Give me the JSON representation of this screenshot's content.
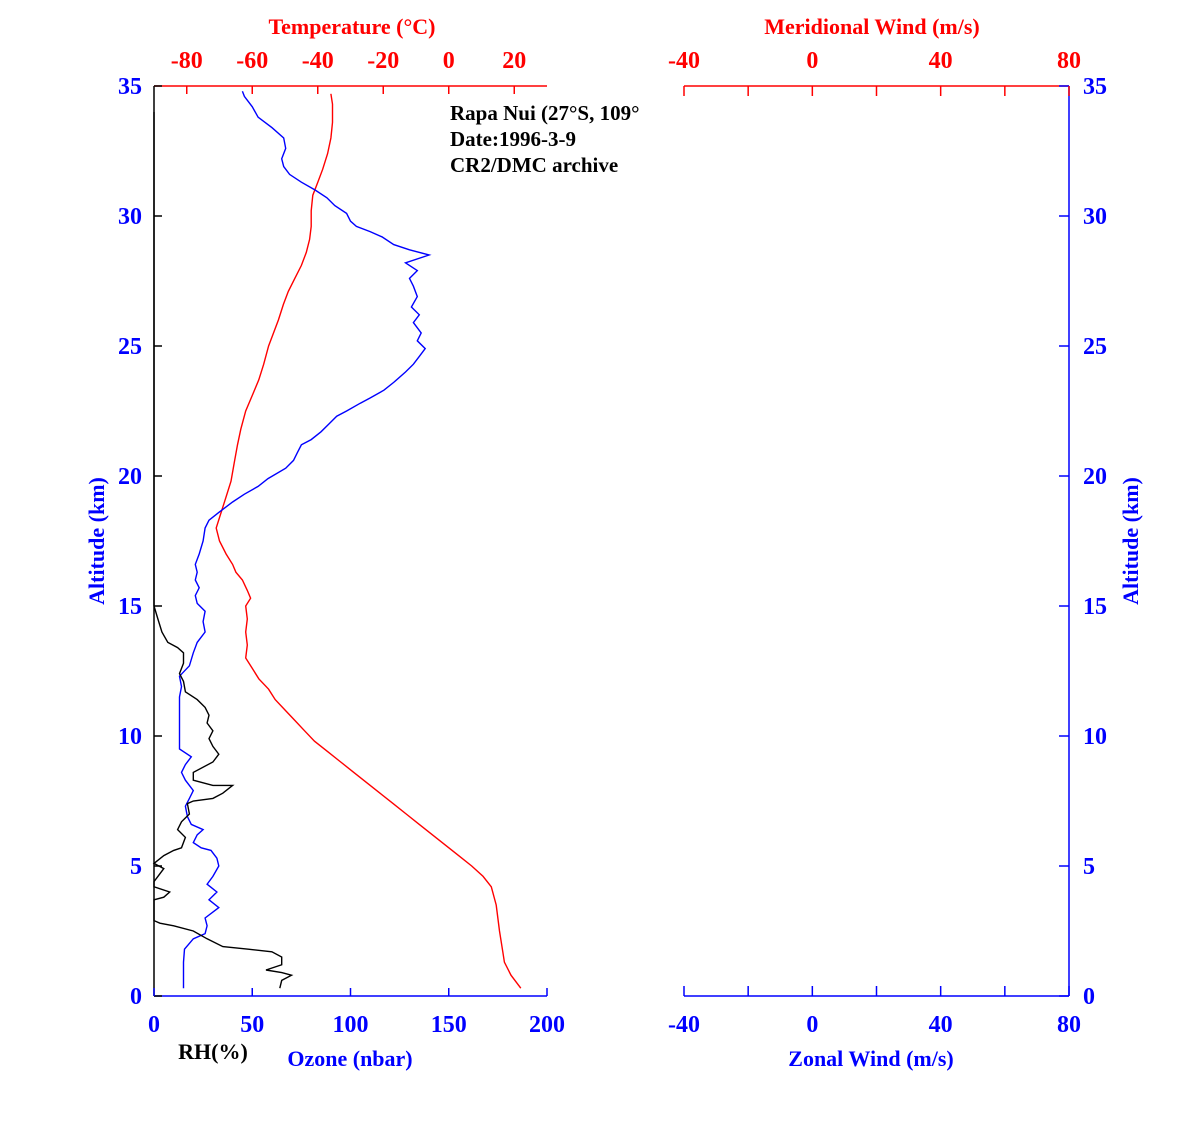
{
  "chart_data": [
    {
      "type": "line",
      "title": "",
      "annotation": [
        "Rapa Nui (27°S, 109°",
        "Date:1996-3-9",
        "CR2/DMC archive"
      ],
      "ylabel": "Altitude (km)",
      "ylim": [
        0,
        35
      ],
      "yticks": [
        0,
        5,
        10,
        15,
        20,
        25,
        30,
        35
      ],
      "bottom_axis": {
        "label": "Ozone (nbar)",
        "secondary_label": "RH(%)",
        "xlim": [
          0,
          200
        ],
        "ticks": [
          0,
          50,
          100,
          150,
          200
        ]
      },
      "top_axis": {
        "label": "Temperature (°C)",
        "xlim": [
          -90,
          30
        ],
        "ticks": [
          -80,
          -60,
          -40,
          -20,
          0,
          20
        ]
      },
      "colors": {
        "temperature": "#ff0000",
        "ozone": "#0000ff",
        "rh": "#000000",
        "axis": "#0000ff"
      },
      "series": [
        {
          "name": "Temperature",
          "axis": "top",
          "color": "#ff0000",
          "points": [
            [
              22,
              0.3
            ],
            [
              19,
              0.8
            ],
            [
              17,
              1.3
            ],
            [
              16.5,
              1.7
            ],
            [
              15.5,
              2.5
            ],
            [
              14.5,
              3.5
            ],
            [
              13,
              4.2
            ],
            [
              10.5,
              4.6
            ],
            [
              7,
              5.0
            ],
            [
              3,
              5.4
            ],
            [
              -1,
              5.8
            ],
            [
              -5,
              6.2
            ],
            [
              -9,
              6.6
            ],
            [
              -13,
              7.0
            ],
            [
              -17,
              7.4
            ],
            [
              -21,
              7.8
            ],
            [
              -25,
              8.2
            ],
            [
              -29,
              8.6
            ],
            [
              -33,
              9.0
            ],
            [
              -37,
              9.4
            ],
            [
              -41,
              9.8
            ],
            [
              -44,
              10.2
            ],
            [
              -47,
              10.6
            ],
            [
              -50,
              11.0
            ],
            [
              -53,
              11.4
            ],
            [
              -55,
              11.8
            ],
            [
              -58,
              12.2
            ],
            [
              -60,
              12.6
            ],
            [
              -62,
              13.0
            ],
            [
              -61.5,
              13.5
            ],
            [
              -62,
              14.0
            ],
            [
              -61.5,
              14.5
            ],
            [
              -62,
              15.0
            ],
            [
              -60.5,
              15.3
            ],
            [
              -61.5,
              15.6
            ],
            [
              -63,
              16.0
            ],
            [
              -65,
              16.3
            ],
            [
              -66,
              16.6
            ],
            [
              -68,
              17.0
            ],
            [
              -70,
              17.5
            ],
            [
              -71,
              18.0
            ],
            [
              -70,
              18.4
            ],
            [
              -69,
              18.8
            ],
            [
              -68,
              19.2
            ],
            [
              -66.5,
              19.8
            ],
            [
              -65.5,
              20.5
            ],
            [
              -64.5,
              21.2
            ],
            [
              -63.5,
              21.8
            ],
            [
              -62,
              22.5
            ],
            [
              -60,
              23.1
            ],
            [
              -58,
              23.7
            ],
            [
              -56.5,
              24.3
            ],
            [
              -55,
              25.0
            ],
            [
              -53.5,
              25.5
            ],
            [
              -52,
              26.0
            ],
            [
              -50.5,
              26.6
            ],
            [
              -49,
              27.1
            ],
            [
              -47,
              27.6
            ],
            [
              -45,
              28.1
            ],
            [
              -43.5,
              28.6
            ],
            [
              -42.5,
              29.1
            ],
            [
              -42,
              29.6
            ],
            [
              -42,
              30.2
            ],
            [
              -41.5,
              30.8
            ],
            [
              -40,
              31.3
            ],
            [
              -38.5,
              31.8
            ],
            [
              -37,
              32.4
            ],
            [
              -36,
              33.0
            ],
            [
              -35.5,
              33.6
            ],
            [
              -35.5,
              34.3
            ],
            [
              -36,
              34.7
            ]
          ]
        },
        {
          "name": "Ozone",
          "axis": "bottom",
          "color": "#0000ff",
          "points": [
            [
              15,
              0.3
            ],
            [
              15,
              0.8
            ],
            [
              15,
              1.3
            ],
            [
              15.5,
              1.8
            ],
            [
              20,
              2.2
            ],
            [
              26,
              2.4
            ],
            [
              27,
              2.7
            ],
            [
              26,
              3.0
            ],
            [
              33,
              3.4
            ],
            [
              28,
              3.7
            ],
            [
              32,
              4.0
            ],
            [
              27,
              4.3
            ],
            [
              30,
              4.6
            ],
            [
              33,
              5.0
            ],
            [
              32,
              5.3
            ],
            [
              29,
              5.6
            ],
            [
              24,
              5.7
            ],
            [
              20,
              5.9
            ],
            [
              22,
              6.2
            ],
            [
              25,
              6.4
            ],
            [
              19,
              6.6
            ],
            [
              17,
              6.9
            ],
            [
              16,
              7.3
            ],
            [
              18,
              7.6
            ],
            [
              20,
              7.9
            ],
            [
              16,
              8.3
            ],
            [
              14,
              8.6
            ],
            [
              16,
              8.9
            ],
            [
              19,
              9.2
            ],
            [
              13,
              9.5
            ],
            [
              13,
              9.9
            ],
            [
              13,
              10.3
            ],
            [
              13,
              10.7
            ],
            [
              13,
              11.1
            ],
            [
              13,
              11.5
            ],
            [
              14,
              11.9
            ],
            [
              13,
              12.3
            ],
            [
              18,
              12.7
            ],
            [
              20,
              13.2
            ],
            [
              22,
              13.6
            ],
            [
              26,
              14.0
            ],
            [
              25,
              14.4
            ],
            [
              26,
              14.8
            ],
            [
              22,
              15.1
            ],
            [
              21,
              15.4
            ],
            [
              23,
              15.7
            ],
            [
              21,
              16.0
            ],
            [
              22,
              16.3
            ],
            [
              21,
              16.6
            ],
            [
              23,
              17.0
            ],
            [
              25,
              17.5
            ],
            [
              26,
              18.0
            ],
            [
              28,
              18.3
            ],
            [
              33,
              18.6
            ],
            [
              40,
              19.0
            ],
            [
              46,
              19.3
            ],
            [
              53,
              19.6
            ],
            [
              58,
              19.9
            ],
            [
              67,
              20.3
            ],
            [
              71,
              20.6
            ],
            [
              73,
              20.9
            ],
            [
              75,
              21.2
            ],
            [
              80,
              21.4
            ],
            [
              85,
              21.7
            ],
            [
              89,
              22.0
            ],
            [
              93,
              22.3
            ],
            [
              98,
              22.5
            ],
            [
              105,
              22.8
            ],
            [
              110,
              23.0
            ],
            [
              117,
              23.3
            ],
            [
              122,
              23.6
            ],
            [
              128,
              24.0
            ],
            [
              132,
              24.3
            ],
            [
              135,
              24.6
            ],
            [
              138,
              24.9
            ],
            [
              134,
              25.2
            ],
            [
              136,
              25.5
            ],
            [
              132,
              25.9
            ],
            [
              135,
              26.2
            ],
            [
              131,
              26.5
            ],
            [
              134,
              26.9
            ],
            [
              132,
              27.3
            ],
            [
              130,
              27.6
            ],
            [
              134,
              27.9
            ],
            [
              128,
              28.2
            ],
            [
              140,
              28.5
            ],
            [
              130,
              28.7
            ],
            [
              122,
              28.9
            ],
            [
              116,
              29.2
            ],
            [
              110,
              29.4
            ],
            [
              103,
              29.6
            ],
            [
              100,
              29.8
            ],
            [
              98,
              30.1
            ],
            [
              92,
              30.4
            ],
            [
              88,
              30.7
            ],
            [
              82,
              31.0
            ],
            [
              75,
              31.3
            ],
            [
              69,
              31.6
            ],
            [
              66,
              31.9
            ],
            [
              65,
              32.2
            ],
            [
              67,
              32.6
            ],
            [
              66,
              33.0
            ],
            [
              60,
              33.4
            ],
            [
              53,
              33.8
            ],
            [
              50,
              34.2
            ],
            [
              46,
              34.6
            ],
            [
              45,
              34.8
            ]
          ]
        },
        {
          "name": "RH",
          "axis": "bottom",
          "color": "#000000",
          "points": [
            [
              64,
              0.3
            ],
            [
              65,
              0.6
            ],
            [
              70,
              0.8
            ],
            [
              65,
              0.9
            ],
            [
              57,
              1.0
            ],
            [
              65,
              1.2
            ],
            [
              65,
              1.5
            ],
            [
              60,
              1.7
            ],
            [
              48,
              1.8
            ],
            [
              35,
              1.9
            ],
            [
              27,
              2.2
            ],
            [
              20,
              2.5
            ],
            [
              10,
              2.7
            ],
            [
              3,
              2.8
            ],
            [
              0,
              2.9
            ],
            [
              0,
              3.3
            ],
            [
              0,
              3.7
            ],
            [
              5,
              3.8
            ],
            [
              8,
              4.0
            ],
            [
              0,
              4.2
            ],
            [
              0,
              4.4
            ],
            [
              2,
              4.6
            ],
            [
              5,
              4.9
            ],
            [
              0,
              5.1
            ],
            [
              5,
              5.4
            ],
            [
              10,
              5.6
            ],
            [
              14,
              5.7
            ],
            [
              16,
              6.1
            ],
            [
              12,
              6.4
            ],
            [
              14,
              6.7
            ],
            [
              18,
              7.0
            ],
            [
              17,
              7.4
            ],
            [
              20,
              7.5
            ],
            [
              30,
              7.6
            ],
            [
              35,
              7.8
            ],
            [
              40,
              8.1
            ],
            [
              30,
              8.1
            ],
            [
              20,
              8.3
            ],
            [
              20,
              8.6
            ],
            [
              30,
              9.0
            ],
            [
              33,
              9.3
            ],
            [
              30,
              9.6
            ],
            [
              28,
              9.9
            ],
            [
              30,
              10.2
            ],
            [
              27,
              10.5
            ],
            [
              28,
              10.8
            ],
            [
              26,
              11.1
            ],
            [
              22,
              11.4
            ],
            [
              16,
              11.7
            ],
            [
              15,
              12.1
            ],
            [
              13,
              12.4
            ],
            [
              15,
              12.8
            ],
            [
              15,
              13.2
            ],
            [
              12,
              13.4
            ],
            [
              7,
              13.6
            ],
            [
              4,
              14.0
            ],
            [
              2,
              14.5
            ],
            [
              0,
              15.0
            ],
            [
              0,
              15.7
            ],
            [
              0,
              16.5
            ],
            [
              0,
              17.3
            ],
            [
              0,
              18.0
            ],
            [
              0,
              18.8
            ],
            [
              0,
              20.0
            ],
            [
              0,
              23.0
            ],
            [
              0,
              26.0
            ],
            [
              0,
              29.0
            ],
            [
              0,
              29.6
            ],
            [
              0,
              30.5
            ],
            [
              0,
              32.0
            ],
            [
              0,
              33.0
            ],
            [
              0,
              34.0
            ]
          ]
        }
      ]
    },
    {
      "type": "line",
      "title": "",
      "ylabel": "Altitude (km)",
      "ylim": [
        0,
        35
      ],
      "yticks": [
        0,
        5,
        10,
        15,
        20,
        25,
        30,
        35
      ],
      "bottom_axis": {
        "label": "Zonal Wind (m/s)",
        "xlim": [
          -40,
          80
        ],
        "ticks": [
          -40,
          0,
          40,
          80
        ]
      },
      "top_axis": {
        "label": "Meridional Wind (m/s)",
        "xlim": [
          -40,
          80
        ],
        "ticks": [
          -40,
          0,
          40,
          80
        ]
      },
      "series": []
    }
  ]
}
